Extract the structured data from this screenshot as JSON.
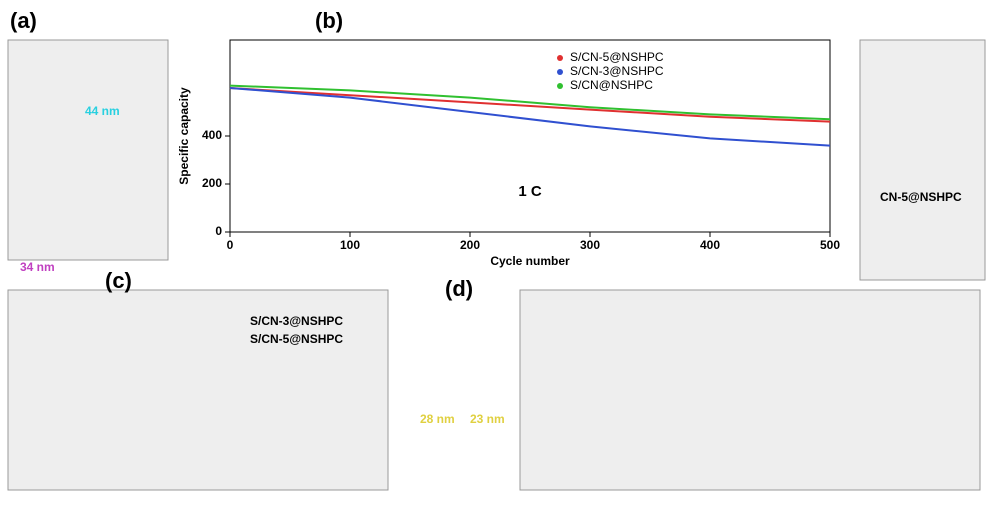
{
  "panel_labels": [
    "(a)",
    "(b)",
    "(c)",
    "(d)"
  ],
  "annotations": [
    "44 nm",
    "34 nm",
    "28 nm",
    "23 nm",
    "CN-5@NSHPC",
    "S/CN-3@NSHPC",
    "S/CN-5@NSHPC"
  ],
  "chart_data": {
    "type": "line",
    "x_label": "Cycle number",
    "y_label": "Specific capacity",
    "annotation": "1 C",
    "x": [
      0,
      100,
      200,
      300,
      400,
      500
    ],
    "series": [
      {
        "name": "S/CN-5@NSHPC",
        "color": "#e03030",
        "values": [
          600,
          570,
          540,
          510,
          480,
          460
        ]
      },
      {
        "name": "S/CN-3@NSHPC",
        "color": "#3050d0",
        "values": [
          600,
          560,
          500,
          440,
          390,
          360
        ]
      },
      {
        "name": "S/CN@NSHPC",
        "color": "#30c030",
        "values": [
          610,
          590,
          560,
          520,
          490,
          470
        ]
      }
    ],
    "xlim": [
      0,
      500
    ],
    "xticks": [
      0,
      100,
      200,
      300,
      400,
      500
    ],
    "ylim": [
      0,
      800
    ],
    "yticks": [
      0,
      200,
      400
    ]
  }
}
